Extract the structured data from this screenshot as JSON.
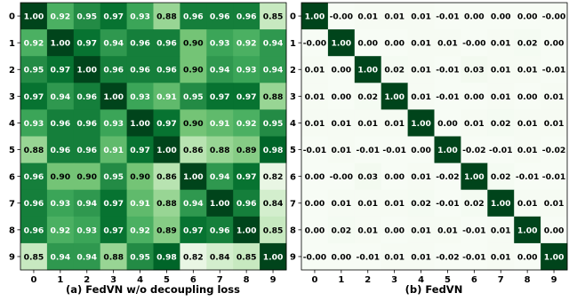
{
  "chart_data": [
    {
      "type": "heatmap",
      "caption": "(a) FedVN w/o decoupling loss",
      "x_ticks": [
        "0",
        "1",
        "2",
        "3",
        "4",
        "5",
        "6",
        "7",
        "8",
        "9"
      ],
      "y_ticks": [
        "0",
        "1",
        "2",
        "3",
        "4",
        "5",
        "6",
        "7",
        "8",
        "9"
      ],
      "colormap": "greens",
      "value_range": [
        0.8,
        1.0
      ],
      "matrix": [
        [
          "1.00",
          "0.92",
          "0.95",
          "0.97",
          "0.93",
          "0.88",
          "0.96",
          "0.96",
          "0.96",
          "0.85"
        ],
        [
          "0.92",
          "1.00",
          "0.97",
          "0.94",
          "0.96",
          "0.96",
          "0.90",
          "0.93",
          "0.92",
          "0.94"
        ],
        [
          "0.95",
          "0.97",
          "1.00",
          "0.96",
          "0.96",
          "0.96",
          "0.90",
          "0.94",
          "0.93",
          "0.94"
        ],
        [
          "0.97",
          "0.94",
          "0.96",
          "1.00",
          "0.93",
          "0.91",
          "0.95",
          "0.97",
          "0.97",
          "0.88"
        ],
        [
          "0.93",
          "0.96",
          "0.96",
          "0.93",
          "1.00",
          "0.97",
          "0.90",
          "0.91",
          "0.92",
          "0.95"
        ],
        [
          "0.88",
          "0.96",
          "0.96",
          "0.91",
          "0.97",
          "1.00",
          "0.86",
          "0.88",
          "0.89",
          "0.98"
        ],
        [
          "0.96",
          "0.90",
          "0.90",
          "0.95",
          "0.90",
          "0.86",
          "1.00",
          "0.94",
          "0.97",
          "0.82"
        ],
        [
          "0.96",
          "0.93",
          "0.94",
          "0.97",
          "0.91",
          "0.88",
          "0.94",
          "1.00",
          "0.96",
          "0.84"
        ],
        [
          "0.96",
          "0.92",
          "0.93",
          "0.97",
          "0.92",
          "0.89",
          "0.97",
          "0.96",
          "1.00",
          "0.85"
        ],
        [
          "0.85",
          "0.94",
          "0.94",
          "0.88",
          "0.95",
          "0.98",
          "0.82",
          "0.84",
          "0.85",
          "1.00"
        ]
      ]
    },
    {
      "type": "heatmap",
      "caption": "(b) FedVN",
      "x_ticks": [
        "0",
        "1",
        "2",
        "3",
        "4",
        "5",
        "6",
        "7",
        "8",
        "9"
      ],
      "y_ticks": [
        "0",
        "1",
        "2",
        "3",
        "4",
        "5",
        "6",
        "7",
        "8",
        "9"
      ],
      "colormap": "greens",
      "value_range": [
        0.0,
        1.0
      ],
      "matrix": [
        [
          "1.00",
          "-0.00",
          "0.01",
          "0.01",
          "0.01",
          "-0.01",
          "0.00",
          "0.00",
          "0.00",
          "-0.00"
        ],
        [
          "-0.00",
          "1.00",
          "0.00",
          "0.00",
          "0.01",
          "0.01",
          "-0.00",
          "0.01",
          "0.02",
          "0.00"
        ],
        [
          "0.01",
          "0.00",
          "1.00",
          "0.02",
          "0.01",
          "-0.01",
          "0.03",
          "0.01",
          "0.01",
          "-0.01"
        ],
        [
          "0.01",
          "0.00",
          "0.02",
          "1.00",
          "0.01",
          "-0.01",
          "0.00",
          "0.01",
          "0.00",
          "0.01"
        ],
        [
          "0.01",
          "0.01",
          "0.01",
          "0.01",
          "1.00",
          "0.00",
          "0.01",
          "0.02",
          "0.01",
          "0.01"
        ],
        [
          "-0.01",
          "0.01",
          "-0.01",
          "-0.01",
          "0.00",
          "1.00",
          "-0.02",
          "-0.01",
          "0.01",
          "-0.02"
        ],
        [
          "0.00",
          "-0.00",
          "0.03",
          "0.00",
          "0.01",
          "-0.02",
          "1.00",
          "0.02",
          "-0.01",
          "-0.01"
        ],
        [
          "0.00",
          "0.01",
          "0.01",
          "0.01",
          "0.02",
          "-0.01",
          "0.02",
          "1.00",
          "0.01",
          "0.01"
        ],
        [
          "0.00",
          "0.02",
          "0.01",
          "0.00",
          "0.01",
          "0.01",
          "-0.01",
          "0.01",
          "1.00",
          "0.00"
        ],
        [
          "-0.00",
          "0.00",
          "-0.01",
          "0.01",
          "0.01",
          "-0.02",
          "-0.01",
          "0.01",
          "0.00",
          "1.00"
        ]
      ]
    }
  ]
}
